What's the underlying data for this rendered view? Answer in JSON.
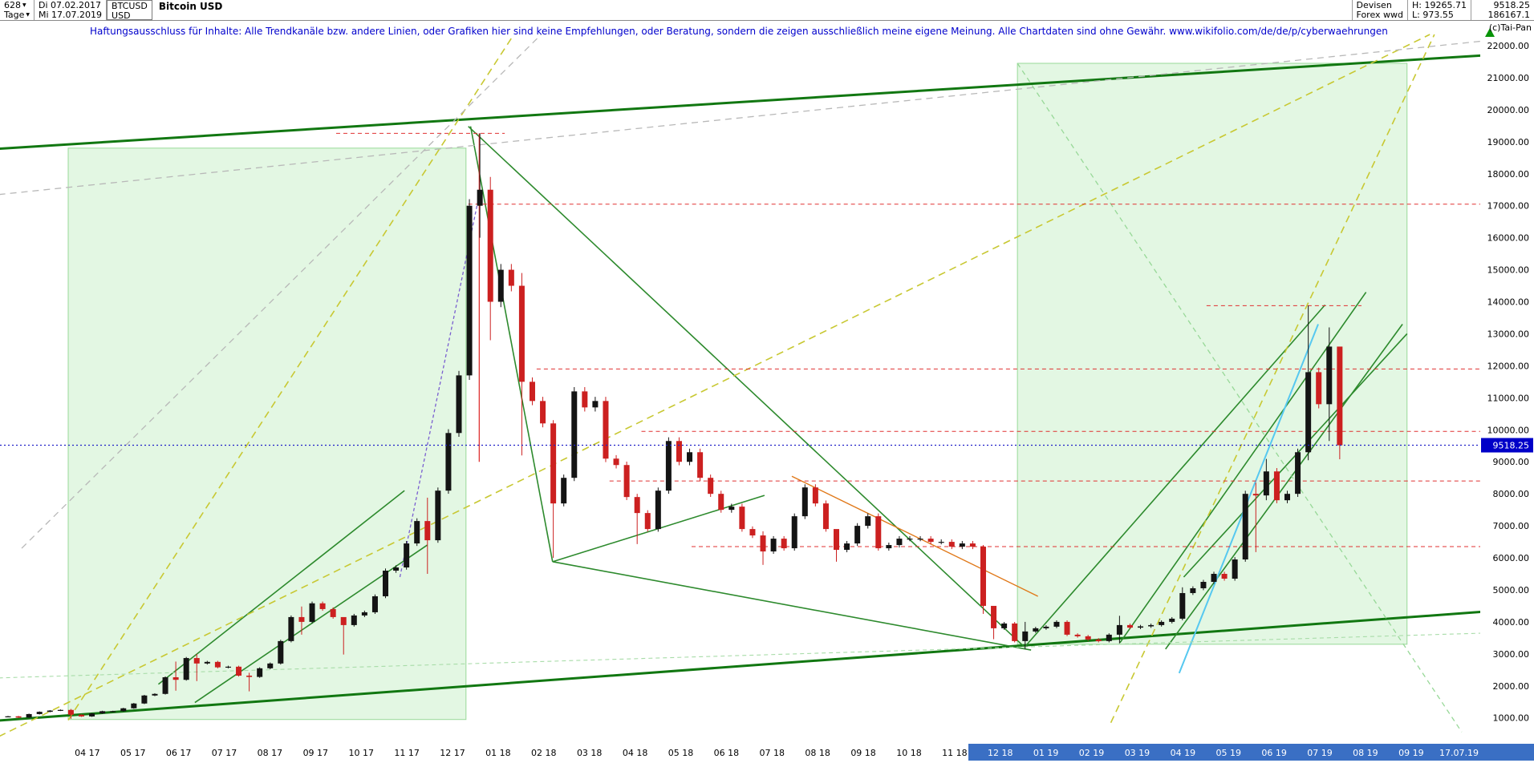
{
  "header": {
    "bar_count": "628",
    "start_date": "Di 07.02.2017",
    "timeframe": "Tage",
    "end_date": "Mi 17.07.2019",
    "symbol": "BTCUSD",
    "currency": "USD",
    "title": "Bitcoin USD",
    "right": {
      "category": "Devisen",
      "feed": "Forex wwd",
      "high": "H: 19265.71",
      "low": "L: 973.55",
      "last": "9518.25",
      "value2": "186167.1",
      "copyright": "(c)Tai-Pan"
    }
  },
  "disclaimer": "Haftungsausschluss für Inhalte: Alle Trendkanäle bzw. andere Linien, oder Grafiken hier sind keine Empfehlungen, oder Beratung, sondern die zeigen ausschließlich meine eigene Meinung. Alle Chartdaten sind ohne Gewähr.  www.wikifolio.com/de/de/p/cyberwaehrungen",
  "chart_data": {
    "type": "candlestick",
    "title": "Bitcoin USD (BTCUSD), Tageschart 07.02.2017 - 17.07.2019",
    "ylabel": "USD",
    "ylim": [
      300,
      22275
    ],
    "grid": false,
    "last_price": 9518.25,
    "period_high": 19265.71,
    "period_low": 973.55,
    "y_ticks": [
      "22000.00",
      "21000.00",
      "20000.00",
      "19000.00",
      "18000.00",
      "17000.00",
      "16000.00",
      "15000.00",
      "14000.00",
      "13000.00",
      "12000.00",
      "11000.00",
      "10000.00",
      "9000.00",
      "8000.00",
      "7000.00",
      "6000.00",
      "5000.00",
      "4000.00",
      "3000.00",
      "2000.00",
      "1000.00"
    ],
    "x_ticks": [
      "04 17",
      "05 17",
      "06 17",
      "07 17",
      "08 17",
      "09 17",
      "10 17",
      "11 17",
      "12 17",
      "01 18",
      "02 18",
      "03 18",
      "04 18",
      "05 18",
      "06 18",
      "07 18",
      "08 18",
      "09 18",
      "10 18",
      "11 18",
      "12 18",
      "01 19",
      "02 19",
      "03 19",
      "04 19",
      "05 19",
      "06 19",
      "07 19",
      "08 19",
      "09 19"
    ],
    "x_end_label": "17.07.19",
    "highlight_band_from_tick": 20,
    "palette": {
      "up": "#141414",
      "down": "#cc2020",
      "channel": "#117711",
      "trend": "#2d8a2d",
      "level": "#e03030",
      "price_line": "#2121c8",
      "badge": "#0000c8",
      "band": "#3a6fc4",
      "box_fill": "rgba(150,225,150,0.27)",
      "box_edge": "rgba(80,190,80,0.55)",
      "arrow": "#089408"
    },
    "candles": {
      "interval": "weekly-approx",
      "start": "07.02.2017",
      "dt": 0.2301,
      "points": [
        [
          1050
        ],
        [
          1010
        ],
        [
          1120
        ],
        [
          1190
        ],
        [
          1230
        ],
        [
          1250
        ],
        [
          1100,
          1280,
          973
        ],
        [
          1045
        ],
        [
          1140
        ],
        [
          1210
        ],
        [
          1210
        ],
        [
          1300
        ],
        [
          1450
        ],
        [
          1700
        ],
        [
          1750
        ],
        [
          2270
        ],
        [
          2190,
          2760,
          1850
        ],
        [
          2870
        ],
        [
          2700,
          3000,
          2150
        ],
        [
          2750
        ],
        [
          2580
        ],
        [
          2600
        ],
        [
          2320
        ],
        [
          2280,
          2410,
          1830
        ],
        [
          2550
        ],
        [
          2700
        ],
        [
          3400
        ],
        [
          4150
        ],
        [
          4000,
          4480,
          3600
        ],
        [
          4580
        ],
        [
          4400
        ],
        [
          4150
        ],
        [
          3900,
          4120,
          2980
        ],
        [
          4200
        ],
        [
          4300
        ],
        [
          4800
        ],
        [
          5600
        ],
        [
          5700
        ],
        [
          6450
        ],
        [
          7150
        ],
        [
          6550,
          7880,
          5500
        ],
        [
          8100
        ],
        [
          9900
        ],
        [
          11700
        ],
        [
          17000
        ],
        [
          17500,
          19260,
          16000
        ],
        [
          14000,
          17900,
          12800
        ],
        [
          15000
        ],
        [
          14500
        ],
        [
          11500,
          14900,
          9200
        ],
        [
          10900
        ],
        [
          10200
        ],
        [
          7700,
          10300,
          6000
        ],
        [
          8500
        ],
        [
          11200
        ],
        [
          10700
        ],
        [
          10900
        ],
        [
          9100
        ],
        [
          8900
        ],
        [
          7900
        ],
        [
          7400,
          8000,
          6430
        ],
        [
          6900
        ],
        [
          8100
        ],
        [
          9650
        ],
        [
          9000
        ],
        [
          9300
        ],
        [
          8500
        ],
        [
          8000
        ],
        [
          7500
        ],
        [
          7600
        ],
        [
          6900
        ],
        [
          6700
        ],
        [
          6200,
          6830,
          5780
        ],
        [
          6600
        ],
        [
          6300
        ],
        [
          7300
        ],
        [
          8200
        ],
        [
          7700
        ],
        [
          6900
        ],
        [
          6250,
          6600,
          5880
        ],
        [
          6450
        ],
        [
          7000
        ],
        [
          7300
        ],
        [
          6300
        ],
        [
          6400
        ],
        [
          6600
        ],
        [
          6600
        ],
        [
          6600
        ],
        [
          6500
        ],
        [
          6500
        ],
        [
          6350
        ],
        [
          6450
        ],
        [
          6350
        ],
        [
          4500,
          6400,
          4250
        ],
        [
          3800,
          4400,
          3460
        ],
        [
          3950
        ],
        [
          3400
        ],
        [
          3700,
          4000,
          3150
        ],
        [
          3800
        ],
        [
          3850
        ],
        [
          4000
        ],
        [
          3600
        ],
        [
          3550
        ],
        [
          3450
        ],
        [
          3400
        ],
        [
          3600
        ],
        [
          3900,
          4190,
          3330
        ],
        [
          3820
        ],
        [
          3860
        ],
        [
          3900
        ],
        [
          4000
        ],
        [
          4100
        ],
        [
          4900,
          5080,
          4050
        ],
        [
          5050
        ],
        [
          5250
        ],
        [
          5500
        ],
        [
          5350
        ],
        [
          5950
        ],
        [
          8000
        ],
        [
          7950,
          8350,
          6180
        ],
        [
          8700,
          9090,
          7800
        ],
        [
          7800
        ],
        [
          8000
        ],
        [
          9300
        ],
        [
          11800,
          13880,
          9050
        ],
        [
          10800
        ],
        [
          12600,
          13200,
          9650
        ],
        [
          9518.25,
          11100,
          9080
        ]
      ]
    },
    "overlays": {
      "boxes": [
        {
          "t1": 1.32,
          "p1": 950,
          "t2": 10.05,
          "p2": 18800
        },
        {
          "t1": 22.15,
          "p1": 3300,
          "t2": 30.7,
          "p2": 21450
        }
      ],
      "lines": [
        {
          "t1": -0.2,
          "p1": 18780,
          "t2": 32.4,
          "p2": 21700,
          "c": "#117711",
          "w": 3
        },
        {
          "t1": -0.2,
          "p1": 920,
          "t2": 32.4,
          "p2": 4320,
          "c": "#117711",
          "w": 3
        },
        {
          "t1": 10.1,
          "p1": 19480,
          "t2": 22.3,
          "p2": 3220,
          "c": "#2d8a2d",
          "w": 1.6
        },
        {
          "t1": 10.15,
          "p1": 19480,
          "t2": 11.95,
          "p2": 5880,
          "c": "#2d8a2d",
          "w": 1.6
        },
        {
          "t1": 11.95,
          "p1": 5880,
          "t2": 16.6,
          "p2": 7950,
          "c": "#2d8a2d",
          "w": 1.6
        },
        {
          "t1": 11.95,
          "p1": 5880,
          "t2": 22.45,
          "p2": 3120,
          "c": "#2d8a2d",
          "w": 1.6
        },
        {
          "t1": 3.3,
          "p1": 2050,
          "t2": 8.7,
          "p2": 8100,
          "c": "#2d8a2d",
          "w": 1.6
        },
        {
          "t1": 4.1,
          "p1": 1480,
          "t2": 9.2,
          "p2": 6400,
          "c": "#2d8a2d",
          "w": 1.6
        },
        {
          "t1": 22.3,
          "p1": 3200,
          "t2": 28.9,
          "p2": 13900,
          "c": "#2d8a2d",
          "w": 1.6
        },
        {
          "t1": 24.4,
          "p1": 3350,
          "t2": 29.8,
          "p2": 14300,
          "c": "#2d8a2d",
          "w": 1.6
        },
        {
          "t1": 25.4,
          "p1": 3150,
          "t2": 30.6,
          "p2": 13300,
          "c": "#2d8a2d",
          "w": 1.6
        },
        {
          "t1": 25.8,
          "p1": 5400,
          "t2": 30.7,
          "p2": 13000,
          "c": "#2d8a2d",
          "w": 1.6
        },
        {
          "t1": 25.7,
          "p1": 2400,
          "t2": 28.75,
          "p2": 13300,
          "c": "#56c8f0",
          "w": 2
        },
        {
          "t1": 17.2,
          "p1": 8550,
          "t2": 22.6,
          "p2": 4800,
          "c": "#e07818",
          "w": 1.4
        },
        {
          "t1": 8.6,
          "p1": 5400,
          "t2": 10.32,
          "p2": 17200,
          "c": "#7a5fd0",
          "w": 1.3,
          "d": "4,3"
        },
        {
          "t1": 1.32,
          "p1": 930,
          "t2": 11.1,
          "p2": 22350,
          "c": "#c8c832",
          "w": 1.6,
          "d": "9,6"
        },
        {
          "t1": -0.2,
          "p1": 420,
          "t2": 31.2,
          "p2": 22350,
          "c": "#c8c832",
          "w": 1.6,
          "d": "9,6"
        },
        {
          "t1": 24.2,
          "p1": 850,
          "t2": 31.3,
          "p2": 22350,
          "c": "#c8c832",
          "w": 1.6,
          "d": "9,6"
        },
        {
          "t1": -0.2,
          "p1": 17350,
          "t2": 32.4,
          "p2": 22150,
          "c": "#b8b8b8",
          "w": 1.3,
          "d": "8,6"
        },
        {
          "t1": 0.3,
          "p1": 6300,
          "t2": 11.7,
          "p2": 22350,
          "c": "#b8b8b8",
          "w": 1.3,
          "d": "8,6"
        },
        {
          "t1": 22.15,
          "p1": 21450,
          "t2": 31.9,
          "p2": 560,
          "c": "#97d897",
          "w": 1.3,
          "d": "6,5"
        },
        {
          "t1": -0.2,
          "p1": 2250,
          "t2": 32.4,
          "p2": 3650,
          "c": "#a8dca8",
          "w": 1.1,
          "d": "5,4"
        },
        {
          "t1": 10.34,
          "p1": 19260,
          "t2": 10.34,
          "p2": 9000,
          "c": "#dd2222",
          "w": 1.2
        }
      ],
      "levels": [
        {
          "p": 19260,
          "t1": 7.2,
          "t2": 10.9
        },
        {
          "p": 17050,
          "t1": 10.1,
          "t2": 32.4
        },
        {
          "p": 13880,
          "t1": 26.3,
          "t2": 29.7
        },
        {
          "p": 11900,
          "t1": 11.6,
          "t2": 32.4
        },
        {
          "p": 9950,
          "t1": 13.9,
          "t2": 32.4
        },
        {
          "p": 8400,
          "t1": 13.2,
          "t2": 32.4
        },
        {
          "p": 6350,
          "t1": 15.0,
          "t2": 32.4
        }
      ]
    }
  }
}
